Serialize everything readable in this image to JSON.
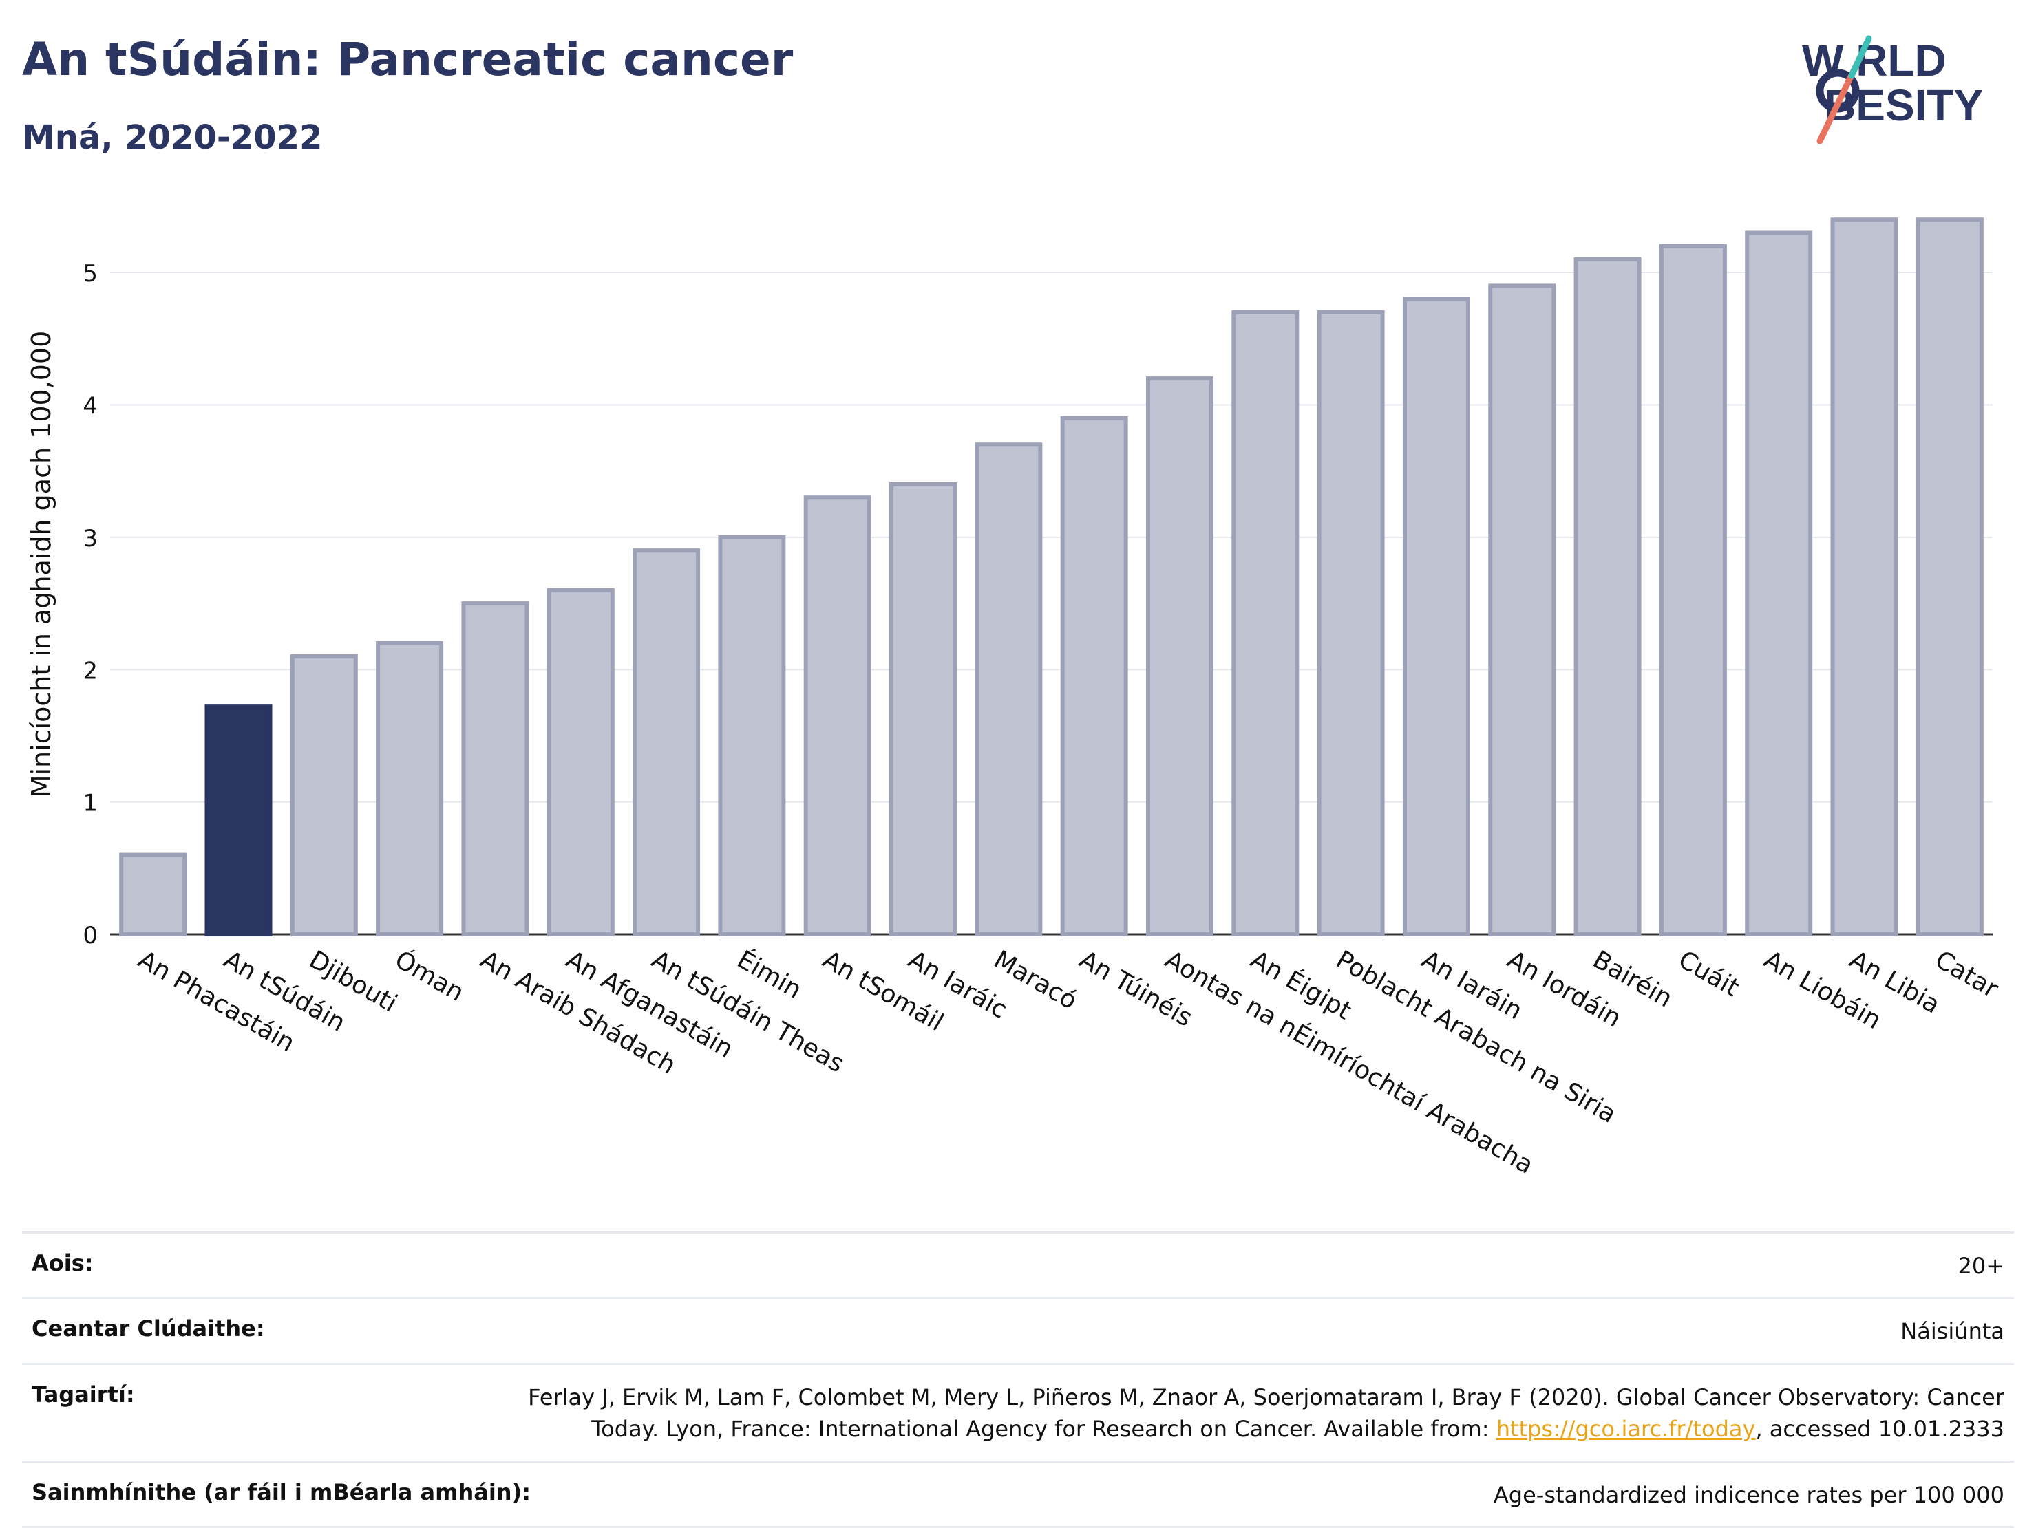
{
  "header": {
    "title": "An tSúdáin: Pancreatic cancer",
    "subtitle": "Mná, 2020-2022"
  },
  "logo": {
    "line1": "W RLD",
    "line2": "BESITY",
    "icon": "world-obesity-logo"
  },
  "colors": {
    "highlight": "#2b3561",
    "bar_fill": "#bfc2d0",
    "bar_stroke": "#9ca1b8",
    "title": "#2b3561",
    "link": "#e8a317"
  },
  "chart_data": {
    "type": "bar",
    "title": "An tSúdáin: Pancreatic cancer",
    "ylabel": "Minicíocht in aghaidh gach 100,000",
    "xlabel": "",
    "ylim": [
      0,
      5.5
    ],
    "yticks": [
      0,
      1,
      2,
      3,
      4,
      5
    ],
    "grid": true,
    "highlight": "An tSúdáin",
    "categories": [
      "An Phacastáin",
      "An tSúdáin",
      "Djibouti",
      "Óman",
      "An Araib Shádach",
      "An Afganastáin",
      "An tSúdáin Theas",
      "Éimin",
      "An tSomáil",
      "An Iaráic",
      "Maracó",
      "An Túinéis",
      "Aontas na nÉimíríochtaí Arabacha",
      "An Éigipt",
      "Poblacht Arabach na Siria",
      "An Iaráin",
      "An Iordáin",
      "Bairéin",
      "Cuáit",
      "An Liobáin",
      "An Libia",
      "Catar"
    ],
    "values": [
      0.6,
      1.72,
      2.1,
      2.2,
      2.5,
      2.6,
      2.9,
      3.0,
      3.3,
      3.4,
      3.7,
      3.9,
      4.2,
      4.7,
      4.7,
      4.8,
      4.9,
      5.1,
      5.2,
      5.3,
      5.4,
      5.4
    ]
  },
  "info": {
    "age_label": "Aois:",
    "age_value": "20+",
    "coverage_label": "Ceantar Clúdaithe:",
    "coverage_value": "Náisiúnta",
    "ref_label": "Tagairtí:",
    "ref_line1": "Ferlay J, Ervik M, Lam F, Colombet M, Mery L, Piñeros M, Znaor A, Soerjomataram I, Bray F (2020). Global Cancer Observatory: Cancer",
    "ref_line2_pre": "Today. Lyon, France: International Agency for Research on Cancer. Available from: ",
    "ref_link": "https://gco.iarc.fr/today",
    "ref_line2_post": ", accessed 10.01.2333",
    "def_label": "Sainmhínithe (ar fáil i mBéarla amháin):",
    "def_value": "Age-standardized indicence rates per 100 000"
  }
}
